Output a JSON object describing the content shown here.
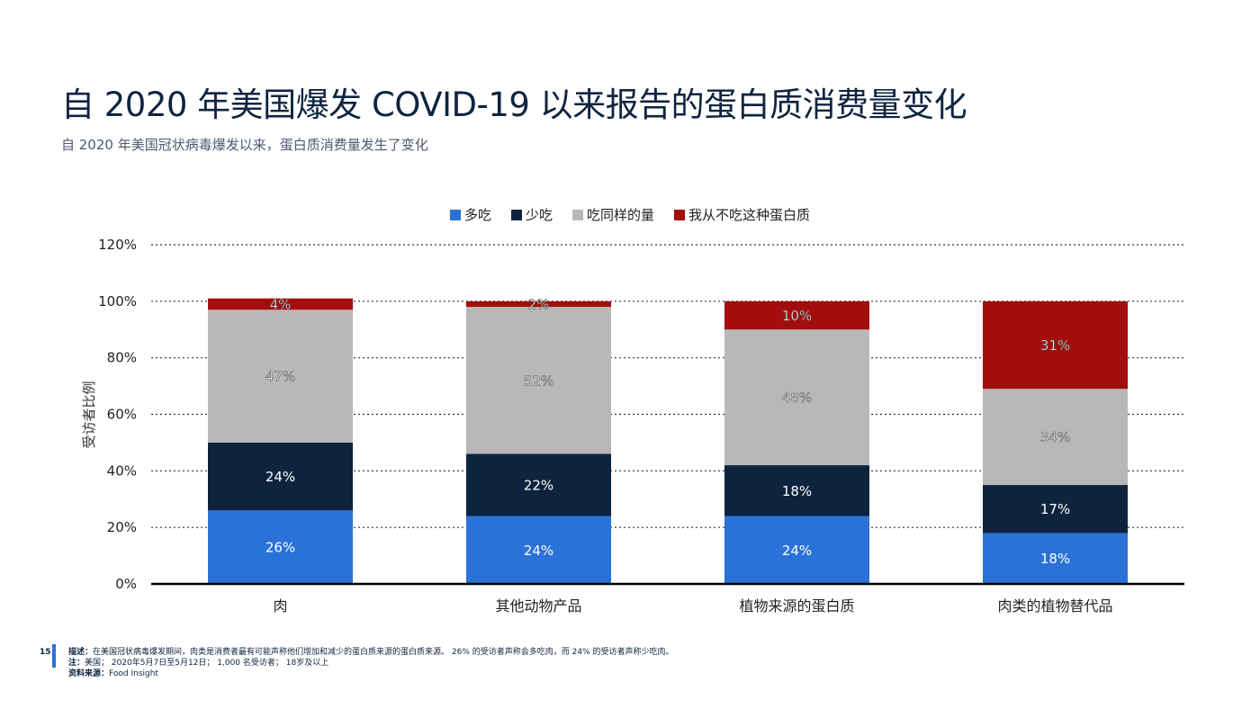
{
  "header": {
    "title": "自 2020 年美国爆发 COVID-19 以来报告的蛋白质消费量变化",
    "subtitle": "自 2020 年美国冠状病毒爆发以来，蛋白质消费量发生了变化"
  },
  "footer": {
    "page_number": "15",
    "desc_label": "描述：",
    "desc_text": "在美国冠状病毒爆发期间，肉类是消费者最有可能声称他们增加和减少的蛋白质来源的蛋白质来源。 26% 的受访者声称会多吃肉，而 24% 的受访者声称少吃肉。",
    "note_label": "注：",
    "note_text": "美国； 2020年5月7日至5月12日； 1,000 名受访者； 18岁及以上",
    "source_label": "资料来源：",
    "source_text": "Food Insight"
  },
  "colors": {
    "more": "#2a72d8",
    "less": "#0e233d",
    "same": "#b8b8b8",
    "never": "#a40d0d"
  },
  "chart_data": {
    "type": "bar",
    "stacked": true,
    "categories": [
      "肉",
      "其他动物产品",
      "植物来源的蛋白质",
      "肉类的植物替代品"
    ],
    "series": [
      {
        "name": "多吃",
        "values": [
          26,
          24,
          24,
          18
        ],
        "labels": [
          "26%",
          "24%",
          "24%",
          "18%"
        ]
      },
      {
        "name": "少吃",
        "values": [
          24,
          22,
          18,
          17
        ],
        "labels": [
          "24%",
          "22%",
          "18%",
          "17%"
        ]
      },
      {
        "name": "吃同样的量",
        "values": [
          47,
          52,
          48,
          34
        ],
        "labels": [
          "47%",
          "52%",
          "48%",
          "34%"
        ]
      },
      {
        "name": "我从不吃这种蛋白质",
        "values": [
          4,
          2,
          10,
          31
        ],
        "labels": [
          "4%",
          "2%",
          "10%",
          "31%"
        ]
      }
    ],
    "ylabel": "受访者比例",
    "xlabel": "",
    "ylim": [
      0,
      120
    ],
    "yticks": [
      "0%",
      "20%",
      "40%",
      "60%",
      "80%",
      "100%",
      "120%"
    ],
    "grid": true,
    "legend": "top-center"
  }
}
